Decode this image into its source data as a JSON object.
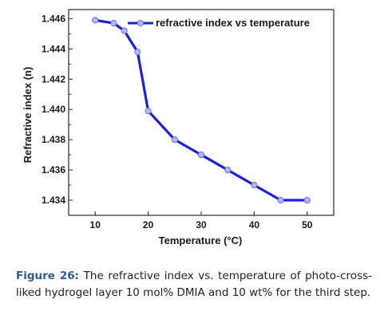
{
  "chart_data": {
    "type": "line",
    "legend": "refractive index vs temperature",
    "legend_position": "top-right",
    "xlabel": "Temperature (°C)",
    "ylabel": "Refractive index (n)",
    "x": [
      10,
      13.5,
      15.5,
      18,
      20,
      25,
      30,
      35,
      40,
      45,
      50
    ],
    "y": [
      1.4459,
      1.4457,
      1.4452,
      1.4438,
      1.4399,
      1.438,
      1.437,
      1.436,
      1.435,
      1.434,
      1.434
    ],
    "xlim": [
      5,
      55
    ],
    "ylim": [
      1.433,
      1.4466
    ],
    "xticks": [
      10,
      20,
      30,
      40,
      50
    ],
    "yticks": [
      1.434,
      1.436,
      1.438,
      1.44,
      1.442,
      1.444,
      1.446
    ],
    "yticks_labels": [
      "1.434",
      "1.436",
      "1.438",
      "1.440",
      "1.442",
      "1.444",
      "1.446"
    ],
    "grid": false,
    "colors": {
      "line": "#1f1fe0",
      "marker_fill": "#b0b8ff",
      "axis": "#2a2a2a"
    }
  },
  "caption": {
    "label": "Figure 26:",
    "text": "The refractive index vs. temperature of photo-cross-liked hydrogel layer 10 mol% DMIA and 10 wt% for the third step."
  }
}
